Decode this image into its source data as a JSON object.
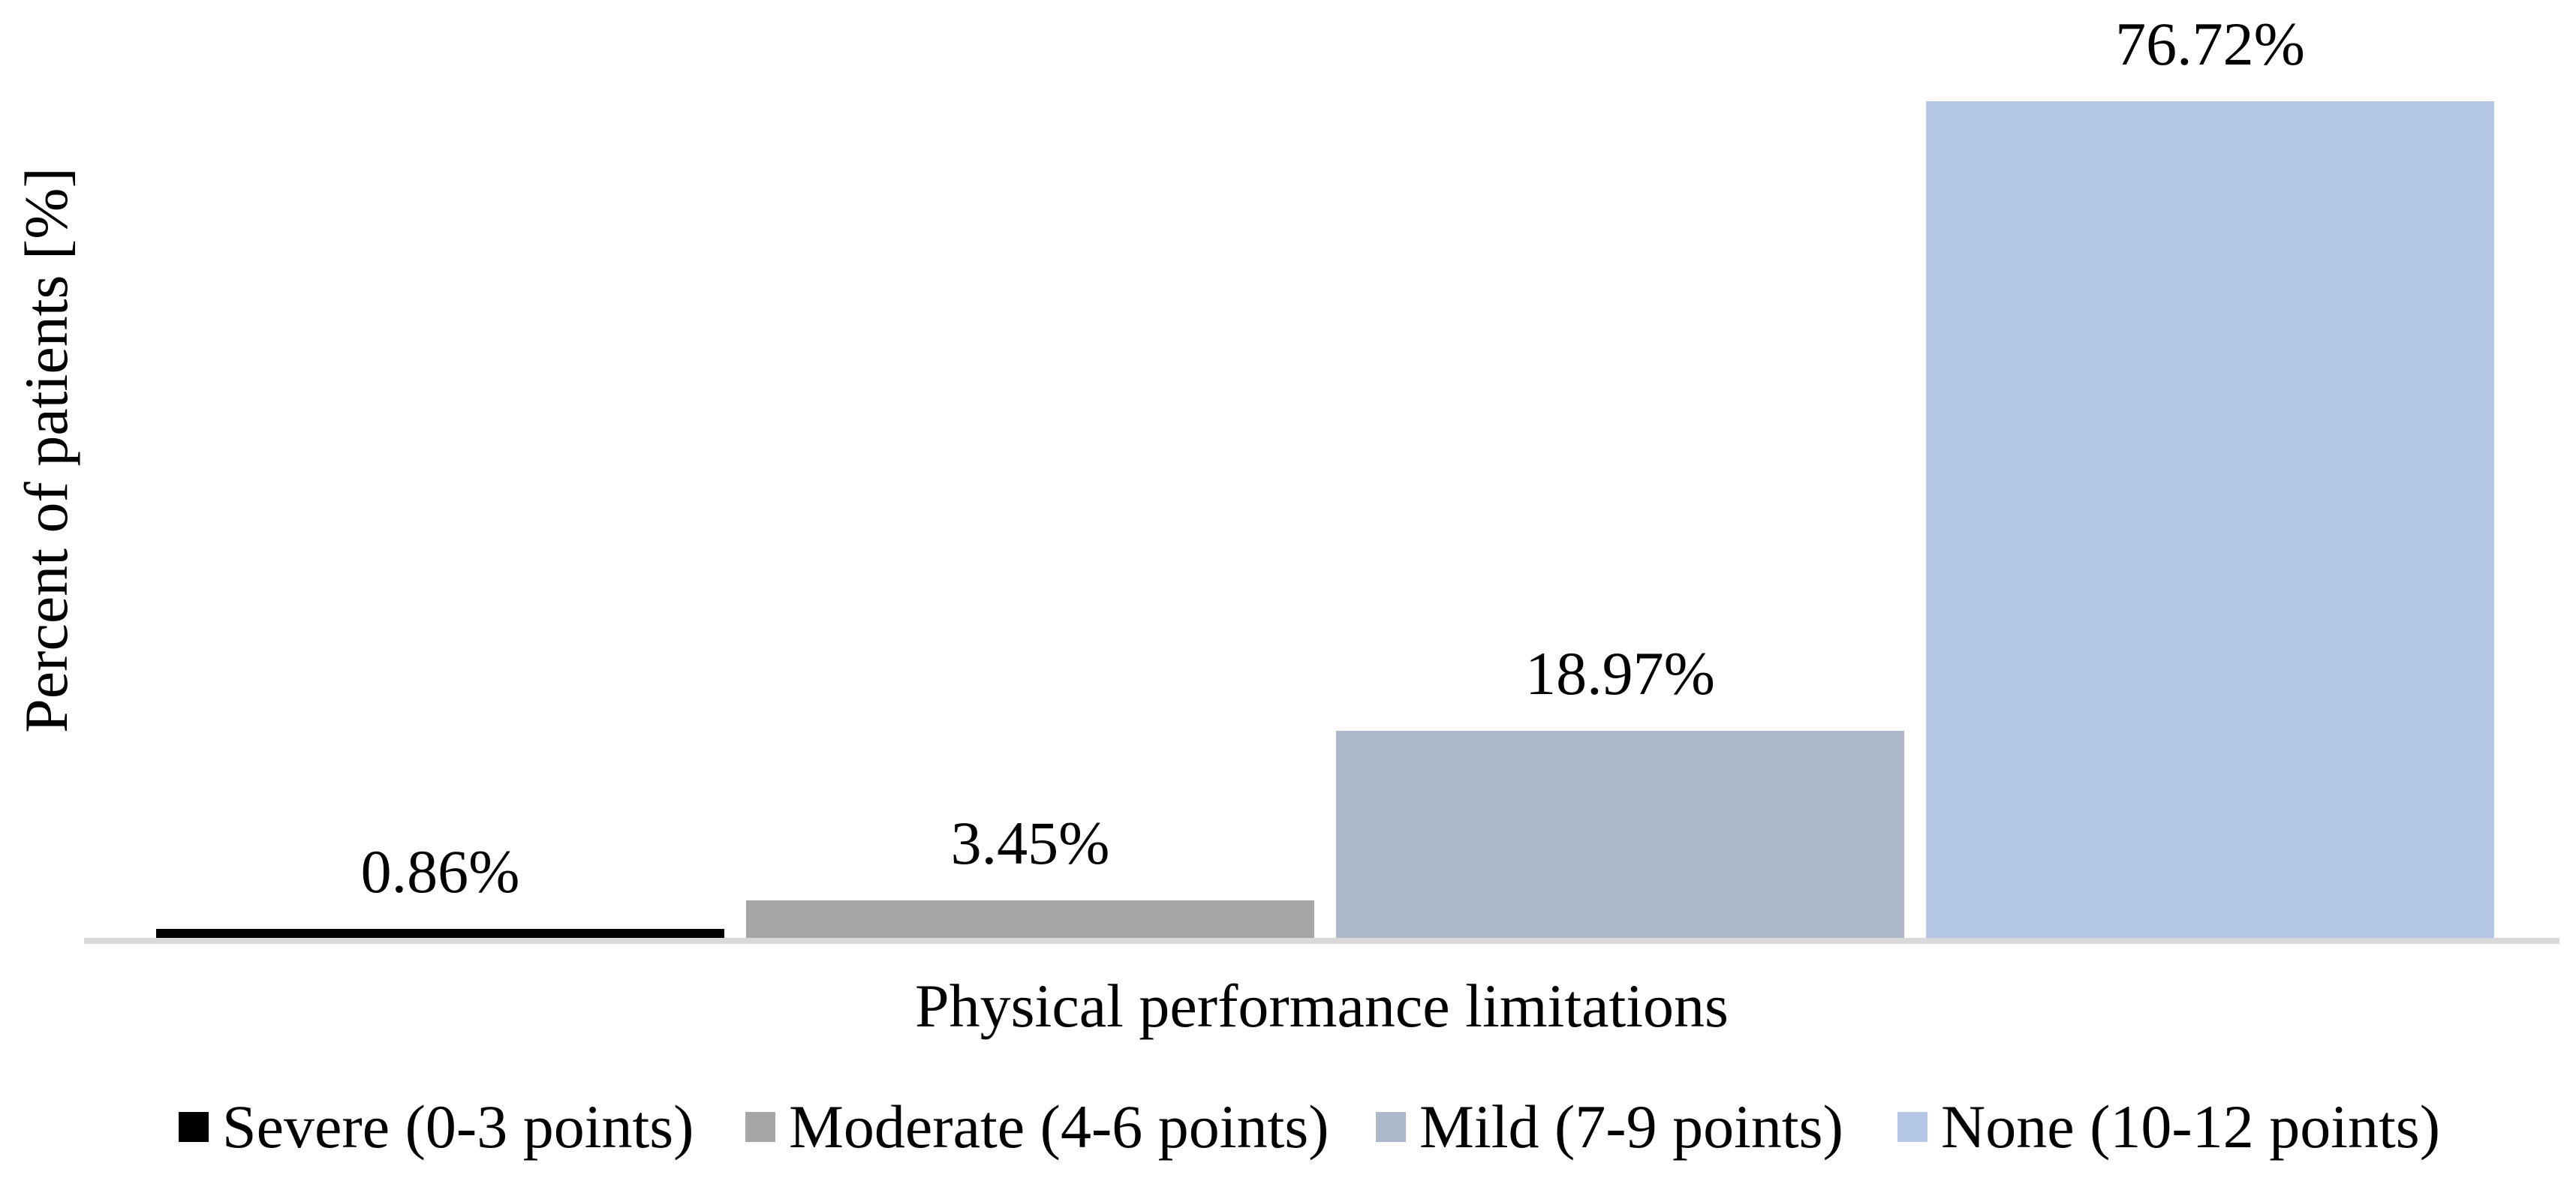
{
  "chart_data": {
    "type": "bar",
    "title": "",
    "xlabel": "Physical performance limitations",
    "ylabel": "Percent of patients [%]",
    "categories": [
      "Severe (0-3 points)",
      "Moderate (4-6 points)",
      "Mild (7-9 points)",
      "None (10-12 points)"
    ],
    "values": [
      0.86,
      3.45,
      18.97,
      76.72
    ],
    "value_labels": [
      "0.86%",
      "3.45%",
      "18.97%",
      "76.72%"
    ],
    "colors": [
      "#000000",
      "#A6A6A6",
      "#ADB9CA",
      "#B4C7E7"
    ],
    "axis_line_color": "#D9D9D9",
    "text_color": "#000000",
    "background_color": "#FFFFFF",
    "grid": false,
    "y_axis_ticks_visible": false,
    "ylim": [
      0,
      86
    ],
    "legend_position": "bottom",
    "legend": [
      "Severe (0-3 points)",
      "Moderate (4-6 points)",
      "Mild (7-9 points)",
      "None (10-12 points)"
    ]
  }
}
